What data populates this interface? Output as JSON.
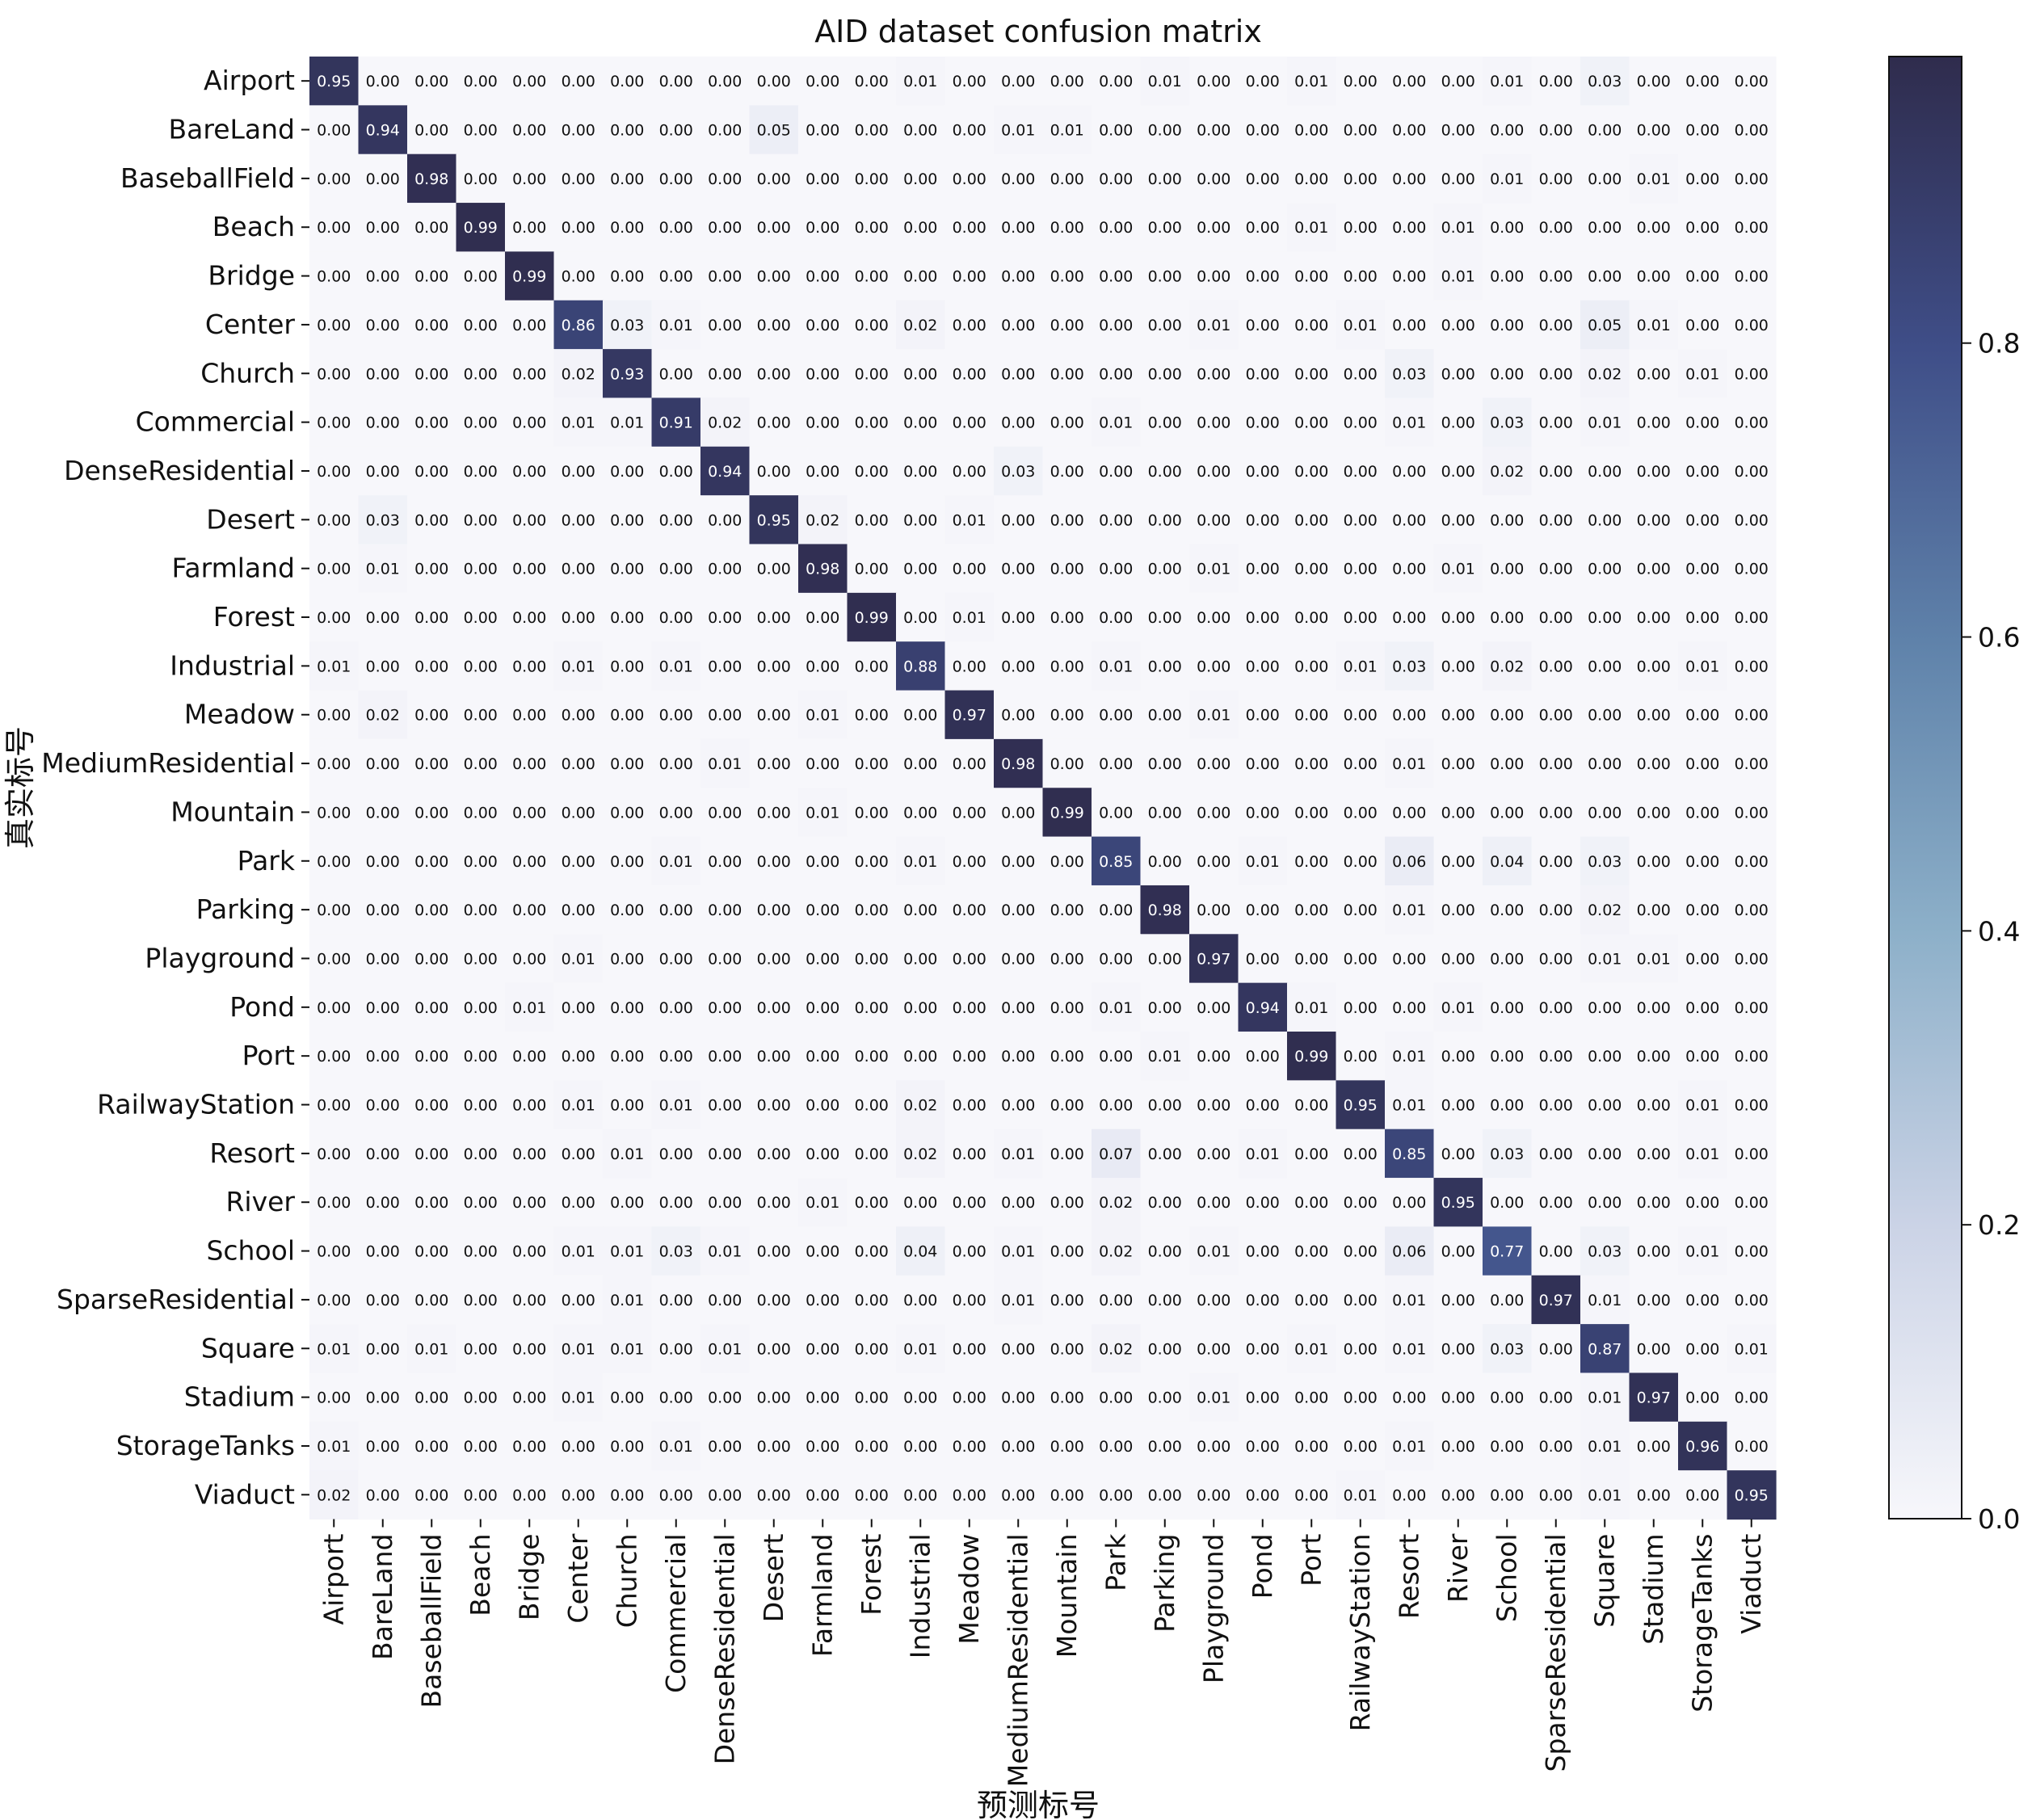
{
  "chart_data": {
    "type": "heatmap",
    "title": "AID dataset confusion matrix",
    "xlabel": "预测标号",
    "ylabel": "真实标号",
    "labels": [
      "Airport",
      "BareLand",
      "BaseballField",
      "Beach",
      "Bridge",
      "Center",
      "Church",
      "Commercial",
      "DenseResidential",
      "Desert",
      "Farmland",
      "Forest",
      "Industrial",
      "Meadow",
      "MediumResidential",
      "Mountain",
      "Park",
      "Parking",
      "Playground",
      "Pond",
      "Port",
      "RailwayStation",
      "Resort",
      "River",
      "School",
      "SparseResidential",
      "Square",
      "Stadium",
      "StorageTanks",
      "Viaduct"
    ],
    "matrix": [
      [
        0.95,
        0.0,
        0.0,
        0.0,
        0.0,
        0.0,
        0.0,
        0.0,
        0.0,
        0.0,
        0.0,
        0.0,
        0.01,
        0.0,
        0.0,
        0.0,
        0.0,
        0.01,
        0.0,
        0.0,
        0.01,
        0.0,
        0.0,
        0.0,
        0.01,
        0.0,
        0.03,
        0.0,
        0.0,
        0.0
      ],
      [
        0.0,
        0.94,
        0.0,
        0.0,
        0.0,
        0.0,
        0.0,
        0.0,
        0.0,
        0.05,
        0.0,
        0.0,
        0.0,
        0.0,
        0.01,
        0.01,
        0.0,
        0.0,
        0.0,
        0.0,
        0.0,
        0.0,
        0.0,
        0.0,
        0.0,
        0.0,
        0.0,
        0.0,
        0.0,
        0.0
      ],
      [
        0.0,
        0.0,
        0.98,
        0.0,
        0.0,
        0.0,
        0.0,
        0.0,
        0.0,
        0.0,
        0.0,
        0.0,
        0.0,
        0.0,
        0.0,
        0.0,
        0.0,
        0.0,
        0.0,
        0.0,
        0.0,
        0.0,
        0.0,
        0.0,
        0.01,
        0.0,
        0.0,
        0.01,
        0.0,
        0.0
      ],
      [
        0.0,
        0.0,
        0.0,
        0.99,
        0.0,
        0.0,
        0.0,
        0.0,
        0.0,
        0.0,
        0.0,
        0.0,
        0.0,
        0.0,
        0.0,
        0.0,
        0.0,
        0.0,
        0.0,
        0.0,
        0.01,
        0.0,
        0.0,
        0.01,
        0.0,
        0.0,
        0.0,
        0.0,
        0.0,
        0.0
      ],
      [
        0.0,
        0.0,
        0.0,
        0.0,
        0.99,
        0.0,
        0.0,
        0.0,
        0.0,
        0.0,
        0.0,
        0.0,
        0.0,
        0.0,
        0.0,
        0.0,
        0.0,
        0.0,
        0.0,
        0.0,
        0.0,
        0.0,
        0.0,
        0.01,
        0.0,
        0.0,
        0.0,
        0.0,
        0.0,
        0.0
      ],
      [
        0.0,
        0.0,
        0.0,
        0.0,
        0.0,
        0.86,
        0.03,
        0.01,
        0.0,
        0.0,
        0.0,
        0.0,
        0.02,
        0.0,
        0.0,
        0.0,
        0.0,
        0.0,
        0.01,
        0.0,
        0.0,
        0.01,
        0.0,
        0.0,
        0.0,
        0.0,
        0.05,
        0.01,
        0.0,
        0.0
      ],
      [
        0.0,
        0.0,
        0.0,
        0.0,
        0.0,
        0.02,
        0.93,
        0.0,
        0.0,
        0.0,
        0.0,
        0.0,
        0.0,
        0.0,
        0.0,
        0.0,
        0.0,
        0.0,
        0.0,
        0.0,
        0.0,
        0.0,
        0.03,
        0.0,
        0.0,
        0.0,
        0.02,
        0.0,
        0.01,
        0.0
      ],
      [
        0.0,
        0.0,
        0.0,
        0.0,
        0.0,
        0.01,
        0.01,
        0.91,
        0.02,
        0.0,
        0.0,
        0.0,
        0.0,
        0.0,
        0.0,
        0.0,
        0.01,
        0.0,
        0.0,
        0.0,
        0.0,
        0.0,
        0.01,
        0.0,
        0.03,
        0.0,
        0.01,
        0.0,
        0.0,
        0.0
      ],
      [
        0.0,
        0.0,
        0.0,
        0.0,
        0.0,
        0.0,
        0.0,
        0.0,
        0.94,
        0.0,
        0.0,
        0.0,
        0.0,
        0.0,
        0.03,
        0.0,
        0.0,
        0.0,
        0.0,
        0.0,
        0.0,
        0.0,
        0.0,
        0.0,
        0.02,
        0.0,
        0.0,
        0.0,
        0.0,
        0.0
      ],
      [
        0.0,
        0.03,
        0.0,
        0.0,
        0.0,
        0.0,
        0.0,
        0.0,
        0.0,
        0.95,
        0.02,
        0.0,
        0.0,
        0.01,
        0.0,
        0.0,
        0.0,
        0.0,
        0.0,
        0.0,
        0.0,
        0.0,
        0.0,
        0.0,
        0.0,
        0.0,
        0.0,
        0.0,
        0.0,
        0.0
      ],
      [
        0.0,
        0.01,
        0.0,
        0.0,
        0.0,
        0.0,
        0.0,
        0.0,
        0.0,
        0.0,
        0.98,
        0.0,
        0.0,
        0.0,
        0.0,
        0.0,
        0.0,
        0.0,
        0.01,
        0.0,
        0.0,
        0.0,
        0.0,
        0.01,
        0.0,
        0.0,
        0.0,
        0.0,
        0.0,
        0.0
      ],
      [
        0.0,
        0.0,
        0.0,
        0.0,
        0.0,
        0.0,
        0.0,
        0.0,
        0.0,
        0.0,
        0.0,
        0.99,
        0.0,
        0.01,
        0.0,
        0.0,
        0.0,
        0.0,
        0.0,
        0.0,
        0.0,
        0.0,
        0.0,
        0.0,
        0.0,
        0.0,
        0.0,
        0.0,
        0.0,
        0.0
      ],
      [
        0.01,
        0.0,
        0.0,
        0.0,
        0.0,
        0.01,
        0.0,
        0.01,
        0.0,
        0.0,
        0.0,
        0.0,
        0.88,
        0.0,
        0.0,
        0.0,
        0.01,
        0.0,
        0.0,
        0.0,
        0.0,
        0.01,
        0.03,
        0.0,
        0.02,
        0.0,
        0.0,
        0.0,
        0.01,
        0.0
      ],
      [
        0.0,
        0.02,
        0.0,
        0.0,
        0.0,
        0.0,
        0.0,
        0.0,
        0.0,
        0.0,
        0.01,
        0.0,
        0.0,
        0.97,
        0.0,
        0.0,
        0.0,
        0.0,
        0.01,
        0.0,
        0.0,
        0.0,
        0.0,
        0.0,
        0.0,
        0.0,
        0.0,
        0.0,
        0.0,
        0.0
      ],
      [
        0.0,
        0.0,
        0.0,
        0.0,
        0.0,
        0.0,
        0.0,
        0.0,
        0.01,
        0.0,
        0.0,
        0.0,
        0.0,
        0.0,
        0.98,
        0.0,
        0.0,
        0.0,
        0.0,
        0.0,
        0.0,
        0.0,
        0.01,
        0.0,
        0.0,
        0.0,
        0.0,
        0.0,
        0.0,
        0.0
      ],
      [
        0.0,
        0.0,
        0.0,
        0.0,
        0.0,
        0.0,
        0.0,
        0.0,
        0.0,
        0.0,
        0.01,
        0.0,
        0.0,
        0.0,
        0.0,
        0.99,
        0.0,
        0.0,
        0.0,
        0.0,
        0.0,
        0.0,
        0.0,
        0.0,
        0.0,
        0.0,
        0.0,
        0.0,
        0.0,
        0.0
      ],
      [
        0.0,
        0.0,
        0.0,
        0.0,
        0.0,
        0.0,
        0.0,
        0.01,
        0.0,
        0.0,
        0.0,
        0.0,
        0.01,
        0.0,
        0.0,
        0.0,
        0.85,
        0.0,
        0.0,
        0.01,
        0.0,
        0.0,
        0.06,
        0.0,
        0.04,
        0.0,
        0.03,
        0.0,
        0.0,
        0.0
      ],
      [
        0.0,
        0.0,
        0.0,
        0.0,
        0.0,
        0.0,
        0.0,
        0.0,
        0.0,
        0.0,
        0.0,
        0.0,
        0.0,
        0.0,
        0.0,
        0.0,
        0.0,
        0.98,
        0.0,
        0.0,
        0.0,
        0.0,
        0.01,
        0.0,
        0.0,
        0.0,
        0.02,
        0.0,
        0.0,
        0.0
      ],
      [
        0.0,
        0.0,
        0.0,
        0.0,
        0.0,
        0.01,
        0.0,
        0.0,
        0.0,
        0.0,
        0.0,
        0.0,
        0.0,
        0.0,
        0.0,
        0.0,
        0.0,
        0.0,
        0.97,
        0.0,
        0.0,
        0.0,
        0.0,
        0.0,
        0.0,
        0.0,
        0.01,
        0.01,
        0.0,
        0.0
      ],
      [
        0.0,
        0.0,
        0.0,
        0.0,
        0.01,
        0.0,
        0.0,
        0.0,
        0.0,
        0.0,
        0.0,
        0.0,
        0.0,
        0.0,
        0.0,
        0.0,
        0.01,
        0.0,
        0.0,
        0.94,
        0.01,
        0.0,
        0.0,
        0.01,
        0.0,
        0.0,
        0.0,
        0.0,
        0.0,
        0.0
      ],
      [
        0.0,
        0.0,
        0.0,
        0.0,
        0.0,
        0.0,
        0.0,
        0.0,
        0.0,
        0.0,
        0.0,
        0.0,
        0.0,
        0.0,
        0.0,
        0.0,
        0.0,
        0.01,
        0.0,
        0.0,
        0.99,
        0.0,
        0.01,
        0.0,
        0.0,
        0.0,
        0.0,
        0.0,
        0.0,
        0.0
      ],
      [
        0.0,
        0.0,
        0.0,
        0.0,
        0.0,
        0.01,
        0.0,
        0.01,
        0.0,
        0.0,
        0.0,
        0.0,
        0.02,
        0.0,
        0.0,
        0.0,
        0.0,
        0.0,
        0.0,
        0.0,
        0.0,
        0.95,
        0.01,
        0.0,
        0.0,
        0.0,
        0.0,
        0.0,
        0.01,
        0.0
      ],
      [
        0.0,
        0.0,
        0.0,
        0.0,
        0.0,
        0.0,
        0.01,
        0.0,
        0.0,
        0.0,
        0.0,
        0.0,
        0.02,
        0.0,
        0.01,
        0.0,
        0.07,
        0.0,
        0.0,
        0.01,
        0.0,
        0.0,
        0.85,
        0.0,
        0.03,
        0.0,
        0.0,
        0.0,
        0.01,
        0.0
      ],
      [
        0.0,
        0.0,
        0.0,
        0.0,
        0.0,
        0.0,
        0.0,
        0.0,
        0.0,
        0.0,
        0.01,
        0.0,
        0.0,
        0.0,
        0.0,
        0.0,
        0.02,
        0.0,
        0.0,
        0.0,
        0.0,
        0.0,
        0.0,
        0.95,
        0.0,
        0.0,
        0.0,
        0.0,
        0.0,
        0.0
      ],
      [
        0.0,
        0.0,
        0.0,
        0.0,
        0.0,
        0.01,
        0.01,
        0.03,
        0.01,
        0.0,
        0.0,
        0.0,
        0.04,
        0.0,
        0.01,
        0.0,
        0.02,
        0.0,
        0.01,
        0.0,
        0.0,
        0.0,
        0.06,
        0.0,
        0.77,
        0.0,
        0.03,
        0.0,
        0.01,
        0.0
      ],
      [
        0.0,
        0.0,
        0.0,
        0.0,
        0.0,
        0.0,
        0.01,
        0.0,
        0.0,
        0.0,
        0.0,
        0.0,
        0.0,
        0.0,
        0.01,
        0.0,
        0.0,
        0.0,
        0.0,
        0.0,
        0.0,
        0.0,
        0.01,
        0.0,
        0.0,
        0.97,
        0.01,
        0.0,
        0.0,
        0.0
      ],
      [
        0.01,
        0.0,
        0.01,
        0.0,
        0.0,
        0.01,
        0.01,
        0.0,
        0.01,
        0.0,
        0.0,
        0.0,
        0.01,
        0.0,
        0.0,
        0.0,
        0.02,
        0.0,
        0.0,
        0.0,
        0.01,
        0.0,
        0.01,
        0.0,
        0.03,
        0.0,
        0.87,
        0.0,
        0.0,
        0.01
      ],
      [
        0.0,
        0.0,
        0.0,
        0.0,
        0.0,
        0.01,
        0.0,
        0.0,
        0.0,
        0.0,
        0.0,
        0.0,
        0.0,
        0.0,
        0.0,
        0.0,
        0.0,
        0.0,
        0.01,
        0.0,
        0.0,
        0.0,
        0.0,
        0.0,
        0.0,
        0.0,
        0.01,
        0.97,
        0.0,
        0.0
      ],
      [
        0.01,
        0.0,
        0.0,
        0.0,
        0.0,
        0.0,
        0.0,
        0.01,
        0.0,
        0.0,
        0.0,
        0.0,
        0.0,
        0.0,
        0.0,
        0.0,
        0.0,
        0.0,
        0.0,
        0.0,
        0.0,
        0.0,
        0.01,
        0.0,
        0.0,
        0.0,
        0.01,
        0.0,
        0.96,
        0.0
      ],
      [
        0.02,
        0.0,
        0.0,
        0.0,
        0.0,
        0.0,
        0.0,
        0.0,
        0.0,
        0.0,
        0.0,
        0.0,
        0.0,
        0.0,
        0.0,
        0.0,
        0.0,
        0.0,
        0.0,
        0.0,
        0.0,
        0.01,
        0.0,
        0.0,
        0.0,
        0.0,
        0.01,
        0.0,
        0.0,
        0.95
      ]
    ],
    "value_range": [
      0,
      1
    ],
    "colorbar_ticks": [
      "0.0",
      "0.2",
      "0.4",
      "0.6",
      "0.8"
    ],
    "colormap": [
      "#f7f7fb",
      "#cbd3e6",
      "#8db0c9",
      "#5f82aa",
      "#3f4e88",
      "#2f2c4d"
    ]
  }
}
